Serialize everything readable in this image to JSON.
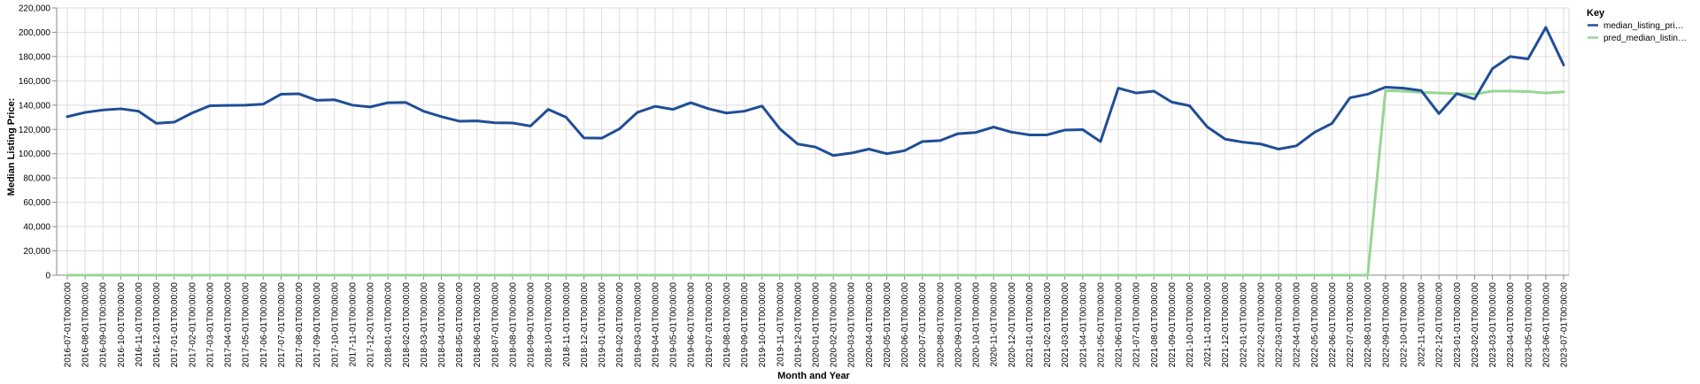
{
  "chart_data": {
    "type": "line",
    "xlabel": "Month and Year",
    "ylabel": "Median Listing Price:",
    "ylim": [
      0,
      220000
    ],
    "y_ticks": [
      "0",
      "20,000",
      "40,000",
      "60,000",
      "80,000",
      "100,000",
      "120,000",
      "140,000",
      "160,000",
      "180,000",
      "200,000",
      "220,000"
    ],
    "grid": true,
    "legend": {
      "title": "Key",
      "placement": "right",
      "entries": [
        "median_listing_pri…",
        "pred_median_listin…"
      ]
    },
    "x": [
      "2016-07-01T00:00:00",
      "2016-08-01T00:00:00",
      "2016-09-01T00:00:00",
      "2016-10-01T00:00:00",
      "2016-11-01T00:00:00",
      "2016-12-01T00:00:00",
      "2017-01-01T00:00:00",
      "2017-02-01T00:00:00",
      "2017-03-01T00:00:00",
      "2017-04-01T00:00:00",
      "2017-05-01T00:00:00",
      "2017-06-01T00:00:00",
      "2017-07-01T00:00:00",
      "2017-08-01T00:00:00",
      "2017-09-01T00:00:00",
      "2017-10-01T00:00:00",
      "2017-11-01T00:00:00",
      "2017-12-01T00:00:00",
      "2018-01-01T00:00:00",
      "2018-02-01T00:00:00",
      "2018-03-01T00:00:00",
      "2018-04-01T00:00:00",
      "2018-05-01T00:00:00",
      "2018-06-01T00:00:00",
      "2018-07-01T00:00:00",
      "2018-08-01T00:00:00",
      "2018-09-01T00:00:00",
      "2018-10-01T00:00:00",
      "2018-11-01T00:00:00",
      "2018-12-01T00:00:00",
      "2019-01-01T00:00:00",
      "2019-02-01T00:00:00",
      "2019-03-01T00:00:00",
      "2019-04-01T00:00:00",
      "2019-05-01T00:00:00",
      "2019-06-01T00:00:00",
      "2019-07-01T00:00:00",
      "2019-08-01T00:00:00",
      "2019-09-01T00:00:00",
      "2019-10-01T00:00:00",
      "2019-11-01T00:00:00",
      "2019-12-01T00:00:00",
      "2020-01-01T00:00:00",
      "2020-02-01T00:00:00",
      "2020-03-01T00:00:00",
      "2020-04-01T00:00:00",
      "2020-05-01T00:00:00",
      "2020-06-01T00:00:00",
      "2020-07-01T00:00:00",
      "2020-08-01T00:00:00",
      "2020-09-01T00:00:00",
      "2020-10-01T00:00:00",
      "2020-11-01T00:00:00",
      "2020-12-01T00:00:00",
      "2021-01-01T00:00:00",
      "2021-02-01T00:00:00",
      "2021-03-01T00:00:00",
      "2021-04-01T00:00:00",
      "2021-05-01T00:00:00",
      "2021-06-01T00:00:00",
      "2021-07-01T00:00:00",
      "2021-08-01T00:00:00",
      "2021-09-01T00:00:00",
      "2021-10-01T00:00:00",
      "2021-11-01T00:00:00",
      "2021-12-01T00:00:00",
      "2022-01-01T00:00:00",
      "2022-02-01T00:00:00",
      "2022-03-01T00:00:00",
      "2022-04-01T00:00:00",
      "2022-05-01T00:00:00",
      "2022-06-01T00:00:00",
      "2022-07-01T00:00:00",
      "2022-08-01T00:00:00",
      "2022-09-01T00:00:00",
      "2022-10-01T00:00:00",
      "2022-11-01T00:00:00",
      "2022-12-01T00:00:00",
      "2023-01-01T00:00:00",
      "2023-02-01T00:00:00",
      "2023-03-01T00:00:00",
      "2023-04-01T00:00:00",
      "2023-05-01T00:00:00",
      "2023-06-01T00:00:00",
      "2023-07-01T00:00:00"
    ],
    "series": [
      {
        "name": "median_listing_pri…",
        "color": "#1f4e96",
        "values": [
          130500,
          134000,
          136000,
          137000,
          135000,
          125000,
          126000,
          133500,
          139500,
          139800,
          140000,
          140800,
          149000,
          149300,
          144000,
          144400,
          140000,
          138500,
          142000,
          142200,
          135000,
          130500,
          126800,
          127000,
          125500,
          125300,
          122800,
          136500,
          130000,
          113000,
          112800,
          120500,
          134000,
          139000,
          136500,
          142000,
          137000,
          133500,
          135000,
          139300,
          120500,
          108000,
          105500,
          98500,
          100500,
          103800,
          100000,
          102500,
          110000,
          110800,
          116500,
          117500,
          122000,
          117800,
          115500,
          115500,
          119500,
          119800,
          110000,
          154000,
          150000,
          151500,
          142500,
          139500,
          122000,
          112000,
          109500,
          108000,
          103800,
          106500,
          117500,
          125000,
          146000,
          149000,
          154800,
          154000,
          152000,
          133000,
          149500,
          145000,
          170000,
          180000,
          178000,
          204000,
          173000
        ]
      },
      {
        "name": "pred_median_listin…",
        "color": "#98d594",
        "values": [
          0,
          0,
          0,
          0,
          0,
          0,
          0,
          0,
          0,
          0,
          0,
          0,
          0,
          0,
          0,
          0,
          0,
          0,
          0,
          0,
          0,
          0,
          0,
          0,
          0,
          0,
          0,
          0,
          0,
          0,
          0,
          0,
          0,
          0,
          0,
          0,
          0,
          0,
          0,
          0,
          0,
          0,
          0,
          0,
          0,
          0,
          0,
          0,
          0,
          0,
          0,
          0,
          0,
          0,
          0,
          0,
          0,
          0,
          0,
          0,
          0,
          0,
          0,
          0,
          0,
          0,
          0,
          0,
          0,
          0,
          0,
          0,
          0,
          0,
          152000,
          151500,
          150500,
          150000,
          149500,
          149000,
          151500,
          151500,
          151200,
          150000,
          151000
        ]
      }
    ]
  }
}
